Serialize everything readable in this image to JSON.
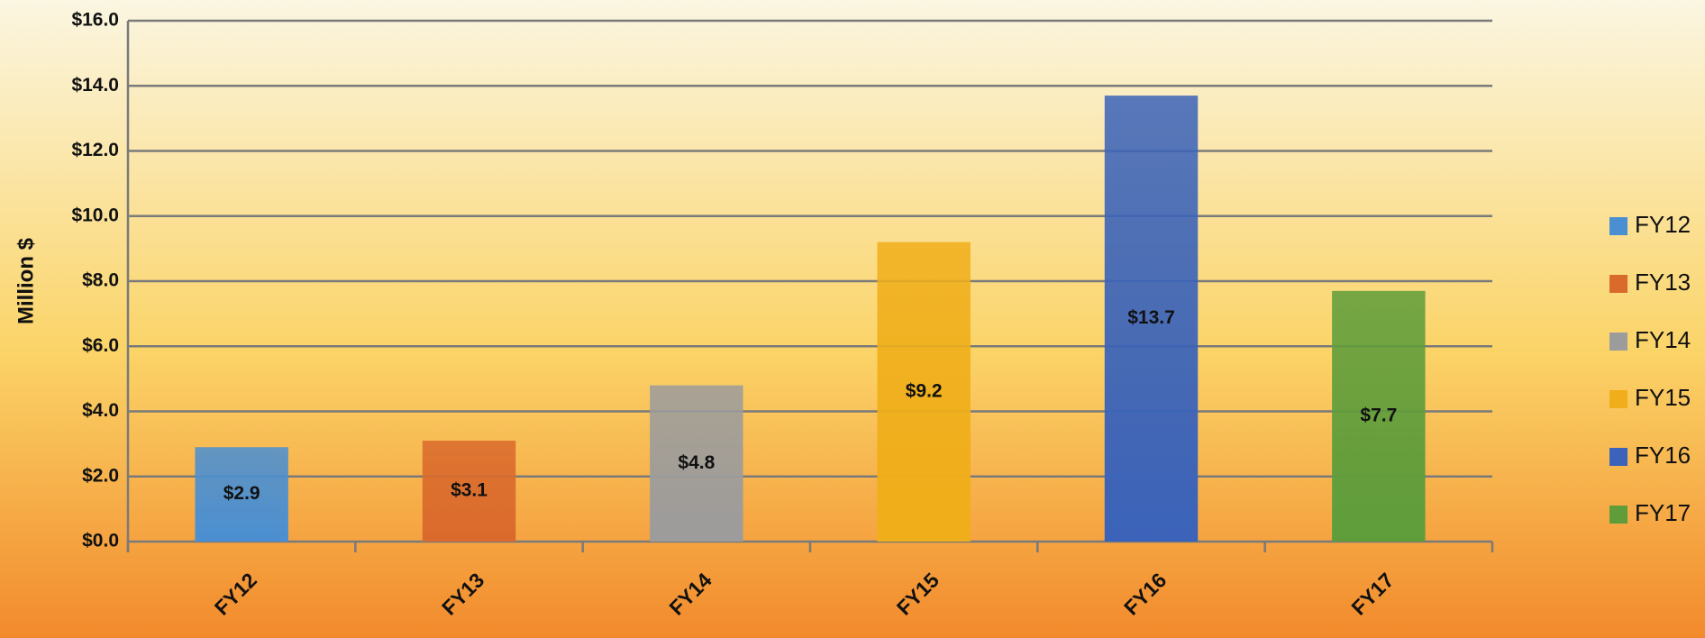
{
  "chart_data": {
    "type": "bar",
    "y_label": "Million $",
    "categories": [
      "FY12",
      "FY13",
      "FY14",
      "FY15",
      "FY16",
      "FY17"
    ],
    "values": [
      2.9,
      3.1,
      4.8,
      9.2,
      13.7,
      7.7
    ],
    "value_labels": [
      "$2.9",
      "$3.1",
      "$4.8",
      "$9.2",
      "$13.7",
      "$7.7"
    ],
    "colors": [
      "#4a8fd2",
      "#da6a2c",
      "#9c9c9c",
      "#f0ae1a",
      "#3b63b9",
      "#5f9d3b"
    ],
    "ylim": [
      0,
      16
    ],
    "yticks": [
      {
        "value": 0,
        "label": "$0.0"
      },
      {
        "value": 2,
        "label": "$2.0"
      },
      {
        "value": 4,
        "label": "$4.0"
      },
      {
        "value": 6,
        "label": "$6.0"
      },
      {
        "value": 8,
        "label": "$8.0"
      },
      {
        "value": 10,
        "label": "$10.0"
      },
      {
        "value": 12,
        "label": "$12.0"
      },
      {
        "value": 14,
        "label": "$14.0"
      },
      {
        "value": 16,
        "label": "$16.0"
      }
    ],
    "grid": true,
    "legend": "right"
  }
}
